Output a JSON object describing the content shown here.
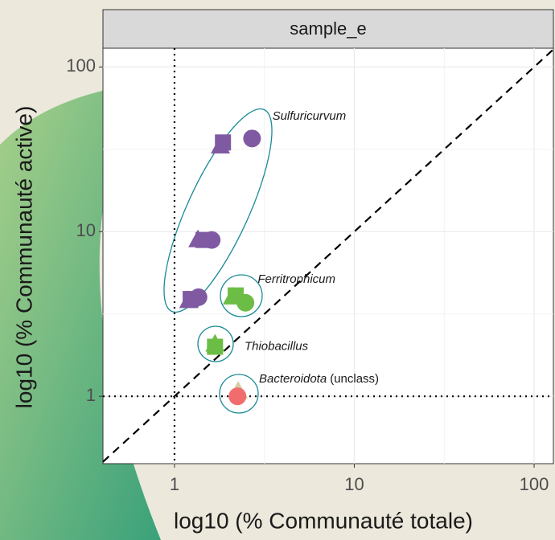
{
  "chart_data": {
    "type": "scatter",
    "strip": "sample_e",
    "x_label": "log10 (% Communauté totale)",
    "y_label": "log10 (% Communauté active)",
    "log_x": true,
    "log_y": true,
    "grid": true,
    "xlim": [
      0.4,
      128
    ],
    "ylim": [
      0.39,
      130
    ],
    "xticks": [
      1,
      10,
      100
    ],
    "yticks": [
      1,
      10,
      100
    ],
    "reference": {
      "diagonal": true,
      "hline": 1,
      "vline": 1
    },
    "points": [
      {
        "x": 2.7,
        "y": 36.8,
        "shape": "circle",
        "color": "#7f5aa2"
      },
      {
        "x": 1.86,
        "y": 34.8,
        "shape": "square",
        "color": "#7f5aa2"
      },
      {
        "x": 1.8,
        "y": 33,
        "shape": "triangle",
        "color": "#7f5aa2"
      },
      {
        "x": 1.61,
        "y": 8.9,
        "shape": "circle",
        "color": "#7f5aa2"
      },
      {
        "x": 1.35,
        "y": 8.9,
        "shape": "triangle",
        "color": "#7f5aa2"
      },
      {
        "x": 1.45,
        "y": 8.9,
        "shape": "square",
        "color": "#7f5aa2"
      },
      {
        "x": 1.36,
        "y": 4.0,
        "shape": "circle",
        "color": "#7f5aa2"
      },
      {
        "x": 1.23,
        "y": 3.9,
        "shape": "square",
        "color": "#7f5aa2"
      },
      {
        "x": 1.2,
        "y": 3.8,
        "shape": "triangle",
        "color": "#7f5aa2"
      },
      {
        "x": 2.19,
        "y": 4.1,
        "shape": "square",
        "color": "#6cbd45"
      },
      {
        "x": 2.1,
        "y": 4.0,
        "shape": "triangle",
        "color": "#6cbd45"
      },
      {
        "x": 2.48,
        "y": 3.7,
        "shape": "circle",
        "color": "#6cbd45"
      },
      {
        "x": 1.68,
        "y": 2.07,
        "shape": "triangle",
        "color": "#6cbd45"
      },
      {
        "x": 1.68,
        "y": 2.0,
        "shape": "square",
        "color": "#6cbd45"
      },
      {
        "x": 2.26,
        "y": 1.07,
        "shape": "triangle",
        "color": "#d9c9a0"
      },
      {
        "x": 2.24,
        "y": 1.0,
        "shape": "circle",
        "color": "#f16d6d"
      }
    ],
    "annotations": [
      {
        "text": "Sulfuricurvum",
        "x": 3.5,
        "y": 50
      },
      {
        "text": "Ferritrophicum",
        "x": 2.9,
        "y": 5.1
      },
      {
        "text": "Thiobacillus",
        "x": 2.45,
        "y": 2.0
      },
      {
        "text": "Bacteroidota",
        "x": 2.95,
        "y": 1.27,
        "suffix": "(unclass)"
      }
    ]
  }
}
